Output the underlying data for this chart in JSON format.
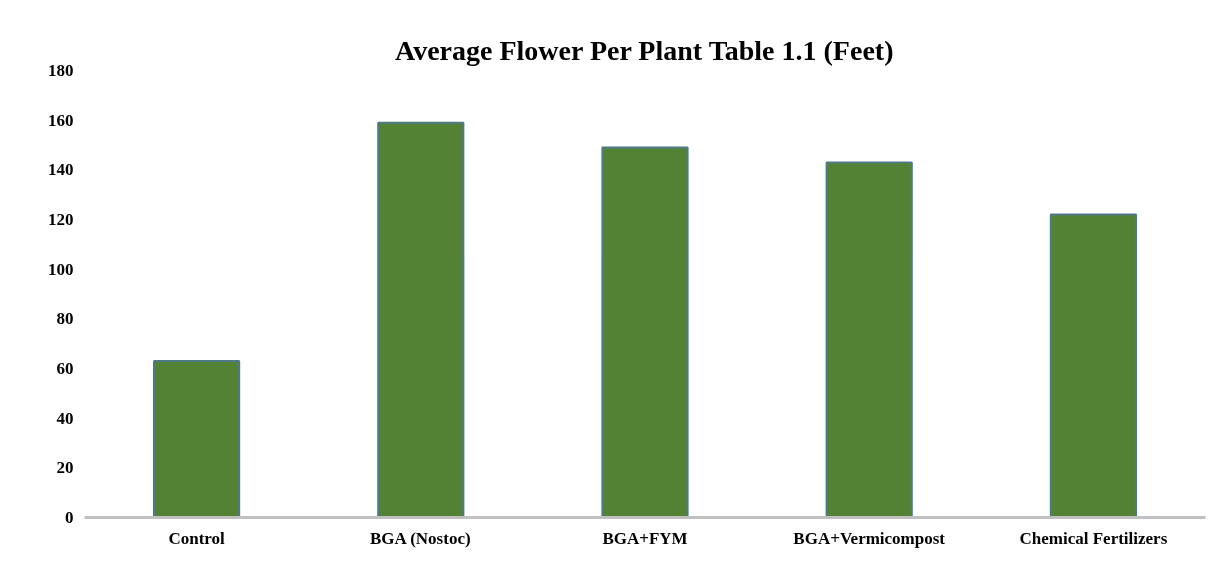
{
  "chart_data": {
    "type": "bar",
    "title": "Average Flower Per Plant Table 1.1 (Feet)",
    "categories": [
      "Control",
      "BGA (Nostoc)",
      "BGA+FYM",
      "BGA+Vermicompost",
      "Chemical Fertilizers"
    ],
    "values": [
      63,
      159,
      149,
      143,
      122
    ],
    "color": "#548235",
    "ylim": [
      0,
      180
    ],
    "yticks": [
      0,
      20,
      40,
      60,
      80,
      100,
      120,
      140,
      160,
      180
    ],
    "grid": false
  }
}
